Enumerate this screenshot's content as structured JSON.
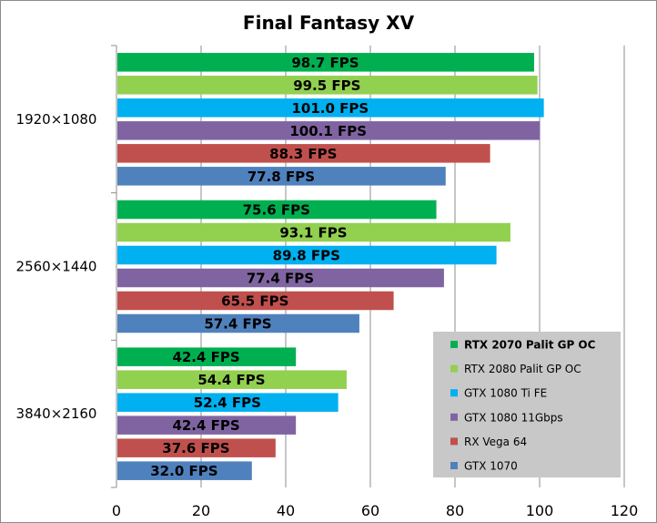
{
  "chart_data": {
    "type": "bar",
    "orientation": "horizontal",
    "title": "Final Fantasy XV",
    "xlim": [
      0,
      120
    ],
    "x_ticks": [
      0,
      20,
      40,
      60,
      80,
      100,
      120
    ],
    "grid": "vertical",
    "legend_position": "bottom-right",
    "categories": [
      "1920×1080",
      "2560×1440",
      "3840×2160"
    ],
    "series": [
      {
        "name": "RTX 2070 Palit GP OC",
        "color": "#00b050",
        "values": [
          98.7,
          75.6,
          42.4
        ],
        "labels": [
          "98.7 FPS",
          "75.6 FPS",
          "42.4 FPS"
        ]
      },
      {
        "name": "RTX 2080 Palit GP OC",
        "color": "#92d050",
        "values": [
          99.5,
          93.1,
          54.4
        ],
        "labels": [
          "99.5 FPS",
          "93.1 FPS",
          "54.4 FPS"
        ]
      },
      {
        "name": "GTX 1080 Ti FE",
        "color": "#00b0f0",
        "values": [
          101.0,
          89.8,
          52.4
        ],
        "labels": [
          "101.0 FPS",
          "89.8 FPS",
          "52.4 FPS"
        ]
      },
      {
        "name": "GTX 1080 11Gbps",
        "color": "#8064a2",
        "values": [
          100.1,
          77.4,
          42.4
        ],
        "labels": [
          "100.1 FPS",
          "77.4 FPS",
          "42.4 FPS"
        ]
      },
      {
        "name": "RX Vega 64",
        "color": "#c0504d",
        "values": [
          88.3,
          65.5,
          37.6
        ],
        "labels": [
          "88.3 FPS",
          "65.5 FPS",
          "37.6 FPS"
        ]
      },
      {
        "name": "GTX 1070",
        "color": "#4f81bd",
        "values": [
          77.8,
          57.4,
          32.0
        ],
        "labels": [
          "77.8 FPS",
          "57.4 FPS",
          "32.0 FPS"
        ]
      }
    ],
    "legend_bold_index": 0,
    "colors": {
      "background": "#ffffff",
      "gridline": "#8c8c8c",
      "legend_background": "#c8c8c8"
    }
  }
}
